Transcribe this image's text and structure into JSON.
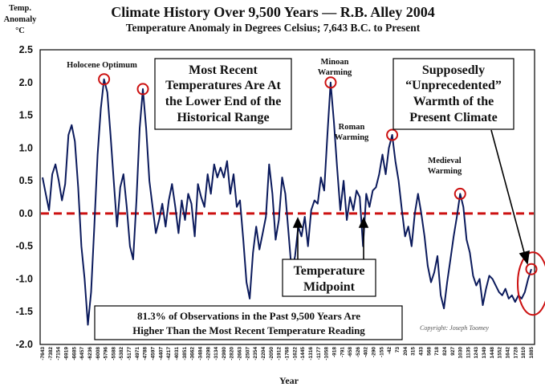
{
  "chart_data": {
    "type": "line",
    "title": "Climate History Over 9,500 Years — R.B. Alley 2004",
    "subtitle": "Temperature Anomaly in Degrees Celsius; 7,643 B.C. to Present",
    "ylabel_lines": [
      "Temp.",
      "Anomaly",
      "°C"
    ],
    "xlabel": "Year",
    "ylim": [
      -2.0,
      2.5
    ],
    "yticks": [
      "2.5",
      "2.0",
      "1.5",
      "1.0",
      "0.5",
      "0.0",
      "-0.5",
      "-1.0",
      "-1.5",
      "-2.0"
    ],
    "xticks": [
      "-7643",
      "-7382",
      "-7154",
      "-6919",
      "-6685",
      "-6457",
      "-6236",
      "-6008",
      "-5796",
      "-5588",
      "-5382",
      "-5177",
      "-4971",
      "-4788",
      "-4597",
      "-4407",
      "-4217",
      "-4031",
      "-3851",
      "-3662",
      "-3484",
      "-3298",
      "-3134",
      "-2980",
      "-2820",
      "-2663",
      "-2507",
      "-2354",
      "-2204",
      "-2050",
      "-1912",
      "-1768",
      "-1622",
      "-1445",
      "-1316",
      "-1177",
      "-1058",
      "-918",
      "-791",
      "-658",
      "-526",
      "-402",
      "-290",
      "-155",
      "-42",
      "73",
      "204",
      "315",
      "433",
      "568",
      "718",
      "824",
      "927",
      "1030",
      "1135",
      "1243",
      "1349",
      "1448",
      "1552",
      "1642",
      "1728",
      "1810",
      "1885"
    ],
    "midpoint": 0.0,
    "series": [
      {
        "values": [
          0.55,
          0.3,
          0.05,
          0.6,
          0.75,
          0.5,
          0.2,
          0.45,
          1.2,
          1.35,
          1.1,
          0.4,
          -0.5,
          -1.0,
          -1.7,
          -1.2,
          -0.2,
          0.9,
          1.6,
          2.05,
          1.85,
          1.2,
          0.5,
          -0.2,
          0.4,
          0.6,
          0.1,
          -0.5,
          -0.7,
          0.2,
          1.3,
          1.9,
          1.3,
          0.5,
          0.1,
          -0.3,
          -0.1,
          0.15,
          -0.2,
          0.2,
          0.45,
          0.1,
          -0.3,
          0.2,
          -0.1,
          0.3,
          0.15,
          -0.35,
          0.45,
          0.25,
          0.1,
          0.6,
          0.3,
          0.75,
          0.55,
          0.7,
          0.55,
          0.8,
          0.3,
          0.6,
          0.1,
          0.2,
          -0.4,
          -1.05,
          -1.3,
          -0.6,
          -0.2,
          -0.55,
          -0.3,
          -0.05,
          0.75,
          0.3,
          -0.4,
          -0.1,
          0.55,
          0.3,
          -0.3,
          -0.9,
          -0.65,
          -0.2,
          -0.35,
          -0.05,
          -0.5,
          0.05,
          0.2,
          0.15,
          0.55,
          0.35,
          1.2,
          2.0,
          1.4,
          0.7,
          0.05,
          0.5,
          -0.1,
          0.25,
          0.05,
          0.35,
          0.25,
          -0.5,
          0.3,
          0.1,
          0.35,
          0.4,
          0.6,
          0.9,
          0.6,
          1.0,
          1.2,
          0.8,
          0.5,
          0.05,
          -0.35,
          -0.2,
          -0.5,
          0.0,
          0.3,
          0.0,
          -0.35,
          -0.8,
          -1.05,
          -0.9,
          -0.65,
          -1.25,
          -1.45,
          -1.05,
          -0.7,
          -0.35,
          -0.05,
          0.3,
          0.1,
          -0.4,
          -0.6,
          -0.95,
          -1.1,
          -1.0,
          -1.4,
          -1.15,
          -0.95,
          -1.0,
          -1.1,
          -1.2,
          -1.25,
          -1.15,
          -1.3,
          -1.25,
          -1.35,
          -1.25,
          -1.3,
          -1.2,
          -1.0,
          -0.85
        ]
      }
    ],
    "highlights": [
      {
        "label": "Holocene Optimum",
        "y": 2.05
      },
      {
        "y": 1.92
      },
      {
        "label": "Minoan Warming",
        "y": 2.0
      },
      {
        "label": "Roman Warming",
        "y": 1.18
      },
      {
        "label": "Medieval Warming",
        "y": 0.3
      },
      {
        "y": -0.85
      }
    ]
  },
  "annotations": {
    "recent_box": [
      "Most Recent",
      "Temperatures Are At",
      "the Lower End of the",
      "Historical Range"
    ],
    "unprecedented_box": [
      "Supposedly",
      "“Unprecedented”",
      "Warmth of the",
      "Present Climate"
    ],
    "midpoint_box": [
      "Temperature",
      "Midpoint"
    ],
    "stat_box": [
      "81.3% of Observations in the Past 9,500 Years Are",
      "Higher Than the Most Recent Temperature Reading"
    ],
    "holocene": "Holocene Optimum",
    "minoan": [
      "Minoan",
      "Warming"
    ],
    "roman": [
      "Roman",
      "Warming"
    ],
    "medieval": [
      "Medieval",
      "Warming"
    ],
    "copyright": "Copyright: Joseph Toomey"
  },
  "colors": {
    "line": "#0b1a5c",
    "midpoint": "#cc1111",
    "circle": "#cc1111",
    "frame": "#000000"
  }
}
